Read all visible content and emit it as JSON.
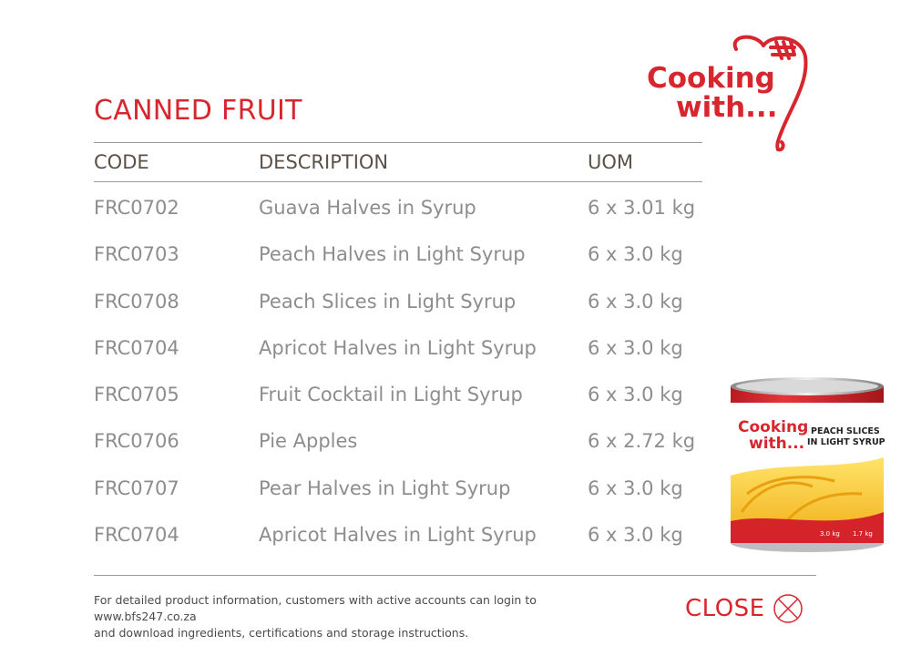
{
  "logo": {
    "line1": "Cooking",
    "line2": "with..."
  },
  "title": "CANNED FRUIT",
  "table": {
    "headers": {
      "code": "CODE",
      "description": "DESCRIPTION",
      "uom": "UOM"
    },
    "rows": [
      {
        "code": "FRC0702",
        "description": "Guava Halves in Syrup",
        "uom": "6 x 3.01 kg"
      },
      {
        "code": "FRC0703",
        "description": "Peach Halves in Light Syrup",
        "uom": "6 x 3.0 kg"
      },
      {
        "code": "FRC0708",
        "description": "Peach Slices in Light Syrup",
        "uom": "6 x 3.0 kg"
      },
      {
        "code": "FRC0704",
        "description": "Apricot Halves in Light Syrup",
        "uom": "6 x 3.0 kg"
      },
      {
        "code": "FRC0705",
        "description": "Fruit Cocktail in Light Syrup",
        "uom": "6 x 3.0 kg"
      },
      {
        "code": "FRC0706",
        "description": "Pie Apples",
        "uom": "6 x 2.72 kg"
      },
      {
        "code": "FRC0707",
        "description": "Pear Halves in Light Syrup",
        "uom": "6 x 3.0 kg"
      },
      {
        "code": "FRC0704",
        "description": "Apricot Halves in Light Syrup",
        "uom": "6 x 3.0 kg"
      }
    ]
  },
  "product_image": {
    "brand_line1": "Cooking",
    "brand_line2": "with...",
    "label_line1": "PEACH SLICES",
    "label_line2": "IN LIGHT SYRUP",
    "weight_left": "3.0 kg",
    "weight_right": "1.7 kg"
  },
  "footer": {
    "line1": "For detailed product information, customers with active accounts can login to www.bfs247.co.za",
    "line2": "and download ingredients, certifications and storage instructions."
  },
  "close": {
    "label": "CLOSE"
  },
  "colors": {
    "brand_red": "#d7262e",
    "header_text": "#5b5148",
    "row_text": "#8d8d8d"
  },
  "icons": {
    "close": "circle-x-icon",
    "logo": "heart-logo-icon"
  }
}
